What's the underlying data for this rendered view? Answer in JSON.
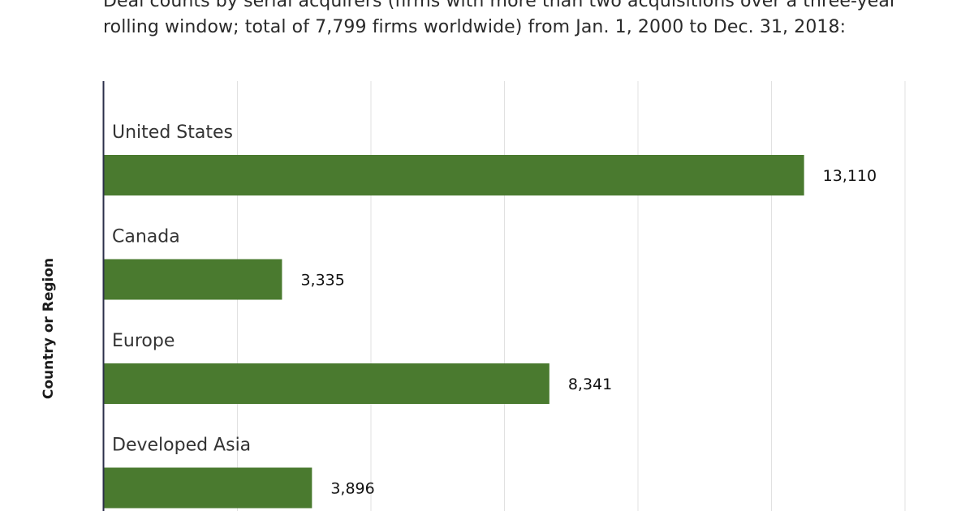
{
  "header": {
    "subtitle_line1": "Deal counts by serial acquirers (firms with more than two acquisitions over a three-year",
    "subtitle_line2": "rolling window; total of 7,799 firms worldwide)  from Jan. 1, 2000 to Dec. 31, 2018:"
  },
  "chart_data": {
    "type": "bar",
    "orientation": "horizontal",
    "title": "",
    "subtitle": "Deal counts by serial acquirers (firms with more than two acquisitions over a three-year rolling window; total of 7,799 firms worldwide)  from Jan. 1, 2000 to Dec. 31, 2018:",
    "ylabel": "Country or Region",
    "xlabel": "",
    "categories": [
      "United States",
      "Canada",
      "Europe",
      "Developed Asia"
    ],
    "values": [
      13110,
      3335,
      8341,
      3896
    ],
    "value_labels": [
      "13,110",
      "3,335",
      "8,341",
      "3,896"
    ],
    "xlim": [
      0,
      17500
    ],
    "grid": true,
    "bar_color": "#4a7a2f",
    "legend": "none"
  }
}
